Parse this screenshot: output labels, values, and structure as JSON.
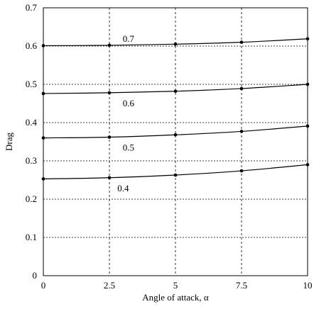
{
  "chart_data": {
    "type": "line",
    "title": "",
    "xlabel": "Angle of attack, α",
    "ylabel": "Drag",
    "xlim": [
      0,
      10
    ],
    "ylim": [
      0,
      0.7
    ],
    "x_ticks": [
      "0",
      "2.5",
      "5",
      "7.5",
      "10"
    ],
    "y_ticks": [
      "0",
      "0.1",
      "0.2",
      "0.3",
      "0.4",
      "0.5",
      "0.6",
      "0.7"
    ],
    "grid": "dashed",
    "x": [
      0,
      2.5,
      5,
      7.5,
      10
    ],
    "series": [
      {
        "name": "0.4",
        "values": [
          0.253,
          0.256,
          0.263,
          0.274,
          0.29
        ]
      },
      {
        "name": "0.5",
        "values": [
          0.36,
          0.362,
          0.368,
          0.377,
          0.391
        ]
      },
      {
        "name": "0.6",
        "values": [
          0.476,
          0.478,
          0.482,
          0.489,
          0.5
        ]
      },
      {
        "name": "0.7",
        "values": [
          0.601,
          0.602,
          0.605,
          0.61,
          0.619
        ]
      }
    ]
  }
}
